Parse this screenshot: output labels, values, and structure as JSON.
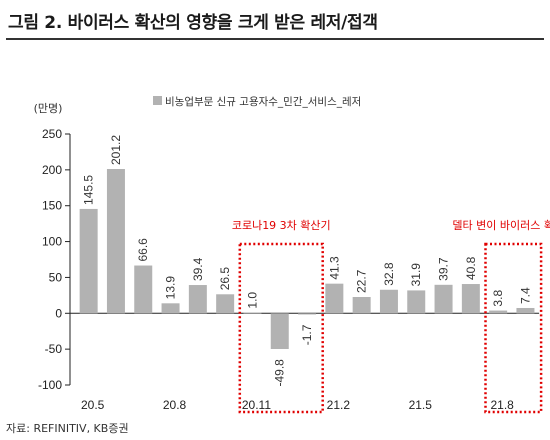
{
  "header": {
    "title": "그림 2. 바이러스 확산의 영향을 크게 받은 레저/접객"
  },
  "footer": {
    "source": "자료: REFINITIV, KB증권"
  },
  "colors": {
    "bar": "#b2b2b2",
    "annotation": "#e00000"
  },
  "chart_data": {
    "type": "bar",
    "title": "그림 2. 바이러스 확산의 영향을 크게 받은 레저/접객",
    "ylabel": "(만명)",
    "ylim": [
      -100,
      250
    ],
    "yticks": [
      -100,
      -50,
      0,
      50,
      100,
      150,
      200,
      250
    ],
    "ytick_labels": [
      "-100",
      "-50",
      "0",
      "50",
      "100",
      "150",
      "200",
      "250"
    ],
    "categories": [
      "20.5",
      "20.6",
      "20.7",
      "20.8",
      "20.9",
      "20.10",
      "20.11",
      "20.12",
      "21.1",
      "21.2",
      "21.3",
      "21.4",
      "21.5",
      "21.6",
      "21.7",
      "21.8",
      "21.9"
    ],
    "x_tick_labels": [
      "20.5",
      "",
      "",
      "20.8",
      "",
      "",
      "20.11",
      "",
      "",
      "21.2",
      "",
      "",
      "21.5",
      "",
      "",
      "21.8",
      ""
    ],
    "series": [
      {
        "name": "비농업부문 신규 고용자수_민간_서비스_레저",
        "values": [
          145.5,
          201.2,
          66.6,
          13.9,
          39.4,
          26.5,
          1.0,
          -49.8,
          -1.7,
          41.3,
          22.7,
          32.8,
          31.9,
          39.7,
          40.8,
          3.8,
          7.4
        ]
      }
    ],
    "data_labels": [
      "145.5",
      "201.2",
      "66.6",
      "13.9",
      "39.4",
      "26.5",
      "1.0",
      "-49.8",
      "-1.7",
      "41.3",
      "22.7",
      "32.8",
      "31.9",
      "39.7",
      "40.8",
      "3.8",
      "7.4"
    ],
    "legend": {
      "position": "top",
      "label": "비농업부문 신규 고용자수_민간_서비스_레저"
    },
    "grid": false,
    "annotations": [
      {
        "text": "코로나19 3차 확산기",
        "from_category": "20.11",
        "to_category": "21.1"
      },
      {
        "text": "델타 변이 바이러스 확산기",
        "from_category": "21.8",
        "to_category": "21.9"
      }
    ]
  }
}
